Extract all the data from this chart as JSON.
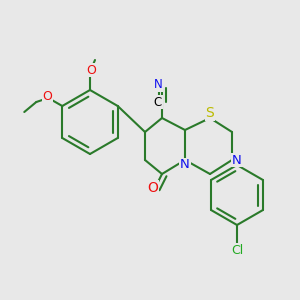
{
  "bg_color": "#e8e8e8",
  "bond_color": "#2a7a2a",
  "bond_width": 1.5,
  "atom_colors": {
    "N": "#1010ee",
    "O": "#ee1010",
    "S": "#bbbb00",
    "Cl": "#22aa22",
    "C": "#000000"
  }
}
